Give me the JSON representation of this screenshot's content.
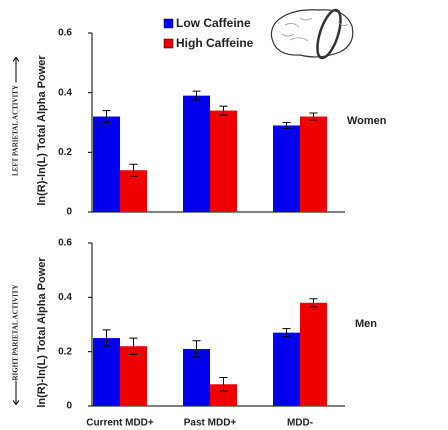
{
  "chart_data": {
    "type": "bar",
    "categories": [
      "Current MDD+",
      "Past MDD+",
      "MDD-"
    ],
    "series": [
      {
        "name": "Low Caffeine",
        "color": "#0000ee"
      },
      {
        "name": "High Caffeine",
        "color": "#ee0000"
      }
    ],
    "panels": [
      {
        "title": "Women",
        "ylabel": "ln(R)-ln(L) Total Alpha Power",
        "side_label": "LEFT PARIETAL ACTIVITY",
        "ylim": [
          0,
          0.6
        ],
        "yticks": [
          0,
          0.2,
          0.4,
          0.6
        ],
        "series": [
          {
            "values": [
              0.32,
              0.39,
              0.29
            ],
            "errors": [
              0.02,
              0.015,
              0.01
            ]
          },
          {
            "values": [
              0.14,
              0.34,
              0.32
            ],
            "errors": [
              0.02,
              0.015,
              0.012
            ]
          }
        ]
      },
      {
        "title": "Men",
        "ylabel": "ln(R)-ln(L) Total Alpha Power",
        "side_label": "RIGHT PARIETAL ACTIVITY",
        "ylim": [
          0,
          0.6
        ],
        "yticks": [
          0,
          0.2,
          0.4,
          0.6
        ],
        "series": [
          {
            "values": [
              0.25,
              0.21,
              0.27
            ],
            "errors": [
              0.03,
              0.03,
              0.015
            ]
          },
          {
            "values": [
              0.22,
              0.08,
              0.38
            ],
            "errors": [
              0.03,
              0.025,
              0.015
            ]
          }
        ]
      }
    ]
  }
}
